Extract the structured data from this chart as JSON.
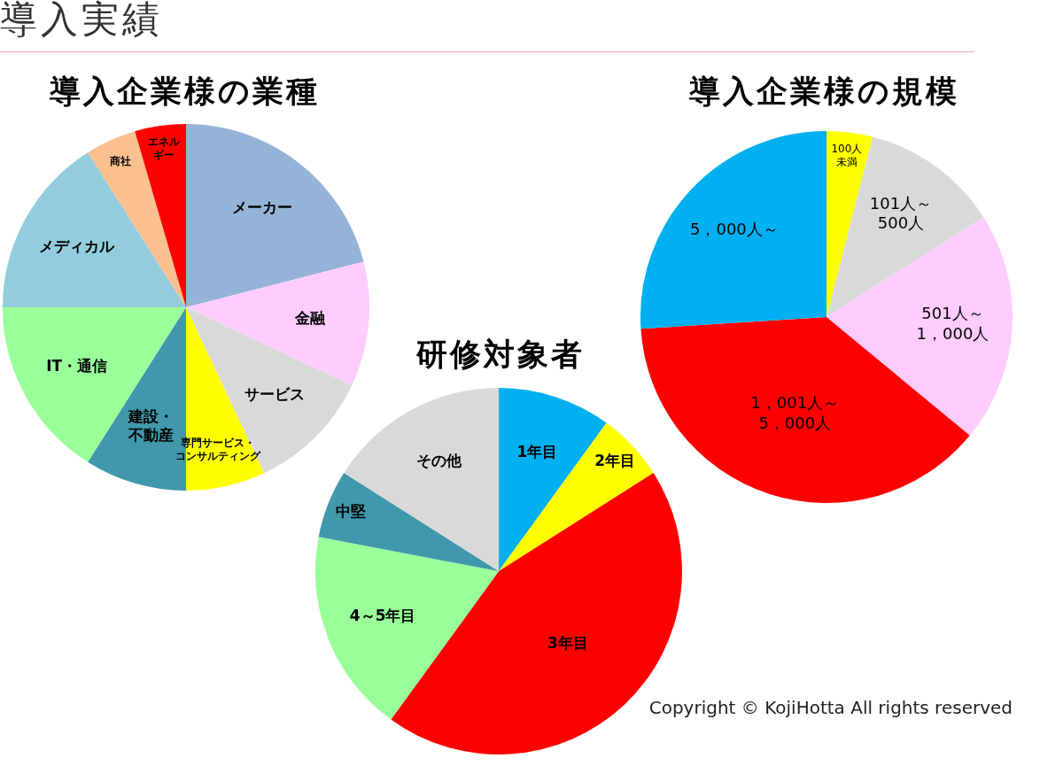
{
  "chart_data": [
    {
      "type": "pie",
      "title": "導入企業様の業種",
      "categories": [
        "メーカー",
        "金融",
        "サービス",
        "専門サービス・コンサルティング",
        "建設・不動産",
        "IT・通信",
        "メディカル",
        "商社",
        "エネルギー"
      ],
      "values": [
        21,
        11,
        11,
        7,
        9,
        16,
        16,
        4.5,
        4.5
      ],
      "colors": [
        "#95b3d7",
        "#ffccff",
        "#d9d9d9",
        "#ffff00",
        "#4197ab",
        "#99ff99",
        "#93cddd",
        "#fac090",
        "#ff0000"
      ],
      "legend": false,
      "annotations": [
        "導入実績"
      ]
    },
    {
      "type": "pie",
      "title": "導入企業様の規模",
      "categories": [
        "100人未満",
        "101人～500人",
        "501人～1，000人",
        "1，001人～5，000人",
        "5，000人～"
      ],
      "values": [
        4,
        12,
        20,
        38,
        26
      ],
      "colors": [
        "#ffff00",
        "#d9d9d9",
        "#ffccff",
        "#ff0000",
        "#00b0f0"
      ],
      "legend": false,
      "annotations": [
        "Copyright © KojiHotta All rights reserved"
      ]
    },
    {
      "type": "pie",
      "title": "研修対象者",
      "categories": [
        "1年目",
        "2年目",
        "3年目",
        "4～5年目",
        "中堅",
        "その他"
      ],
      "values": [
        10,
        6,
        44,
        18,
        6,
        16
      ],
      "colors": [
        "#00b0f0",
        "#ffff00",
        "#ff0000",
        "#99ff99",
        "#4197ab",
        "#d9d9d9"
      ],
      "legend": false
    }
  ]
}
